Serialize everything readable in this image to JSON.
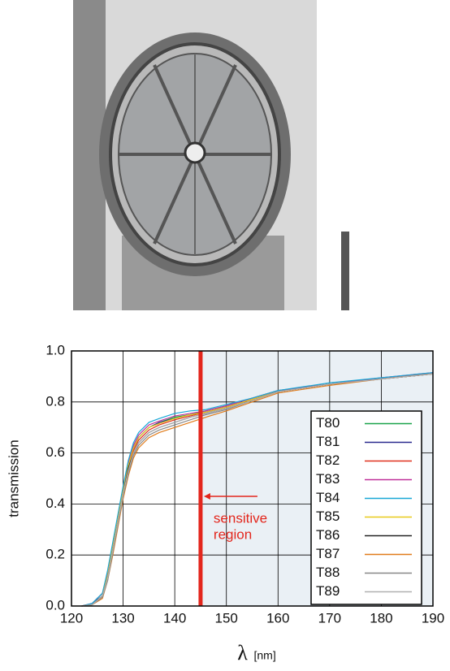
{
  "chart_data": {
    "type": "line",
    "ylabel": "transmission",
    "xlabel": "λ",
    "xlabel_unit": "[nm]",
    "annotation_lines": [
      "sensitive",
      "region"
    ],
    "sensitive_line_x": 145,
    "sensitive_color": "#e3261c",
    "region_color": "#eaf0f5",
    "grid": true,
    "legend": "lower-right",
    "xlim": [
      120,
      190
    ],
    "xticks": [
      120,
      130,
      140,
      150,
      160,
      170,
      180,
      190
    ],
    "ylim": [
      0,
      1
    ],
    "yticks": [
      {
        "value": 0,
        "label": "0.0"
      },
      0.2,
      0.4,
      0.6,
      0.8,
      {
        "value": 1,
        "label": "1.0"
      }
    ],
    "x": [
      122,
      124,
      126,
      127,
      128,
      129,
      130,
      131,
      132,
      133,
      135,
      137,
      140,
      143,
      146,
      150,
      155,
      160,
      170,
      180,
      190
    ],
    "series": [
      {
        "name": "T80",
        "color": "#1aa34a",
        "values": [
          0,
          0.01,
          0.05,
          0.13,
          0.24,
          0.35,
          0.46,
          0.55,
          0.62,
          0.66,
          0.7,
          0.72,
          0.74,
          0.75,
          0.765,
          0.785,
          0.815,
          0.845,
          0.87,
          0.89,
          0.91
        ]
      },
      {
        "name": "T81",
        "color": "#2b2b8f",
        "values": [
          0,
          0.01,
          0.04,
          0.12,
          0.23,
          0.34,
          0.45,
          0.55,
          0.62,
          0.66,
          0.7,
          0.72,
          0.735,
          0.75,
          0.76,
          0.78,
          0.81,
          0.84,
          0.87,
          0.89,
          0.91
        ]
      },
      {
        "name": "T82",
        "color": "#e0301e",
        "values": [
          0,
          0.005,
          0.04,
          0.11,
          0.22,
          0.33,
          0.44,
          0.54,
          0.61,
          0.65,
          0.69,
          0.71,
          0.73,
          0.745,
          0.76,
          0.78,
          0.81,
          0.84,
          0.87,
          0.89,
          0.915
        ]
      },
      {
        "name": "T83",
        "color": "#c0309a",
        "values": [
          0,
          0.01,
          0.05,
          0.13,
          0.24,
          0.35,
          0.46,
          0.56,
          0.63,
          0.67,
          0.71,
          0.725,
          0.745,
          0.755,
          0.765,
          0.785,
          0.815,
          0.845,
          0.87,
          0.895,
          0.915
        ]
      },
      {
        "name": "T84",
        "color": "#18a7d6",
        "values": [
          0,
          0.01,
          0.05,
          0.14,
          0.25,
          0.36,
          0.47,
          0.57,
          0.64,
          0.68,
          0.72,
          0.735,
          0.755,
          0.765,
          0.77,
          0.79,
          0.815,
          0.845,
          0.875,
          0.895,
          0.915
        ]
      },
      {
        "name": "T85",
        "color": "#e8c91a",
        "values": [
          0,
          0.005,
          0.04,
          0.12,
          0.23,
          0.34,
          0.45,
          0.55,
          0.62,
          0.66,
          0.7,
          0.715,
          0.735,
          0.75,
          0.76,
          0.78,
          0.81,
          0.84,
          0.87,
          0.89,
          0.91
        ]
      },
      {
        "name": "T86",
        "color": "#222222",
        "values": [
          0,
          0.005,
          0.04,
          0.11,
          0.22,
          0.33,
          0.44,
          0.54,
          0.6,
          0.64,
          0.68,
          0.7,
          0.72,
          0.74,
          0.755,
          0.775,
          0.805,
          0.84,
          0.87,
          0.89,
          0.91
        ]
      },
      {
        "name": "T87",
        "color": "#e07b1a",
        "values": [
          0,
          0.005,
          0.03,
          0.1,
          0.2,
          0.31,
          0.42,
          0.51,
          0.58,
          0.62,
          0.66,
          0.68,
          0.7,
          0.72,
          0.74,
          0.765,
          0.8,
          0.835,
          0.865,
          0.89,
          0.91
        ]
      },
      {
        "name": "T88",
        "color": "#888888",
        "values": [
          0,
          0.005,
          0.035,
          0.1,
          0.21,
          0.32,
          0.43,
          0.52,
          0.59,
          0.63,
          0.67,
          0.69,
          0.71,
          0.73,
          0.75,
          0.77,
          0.805,
          0.84,
          0.87,
          0.89,
          0.91
        ]
      },
      {
        "name": "T89",
        "color": "#b0b0b0",
        "values": [
          0,
          0.005,
          0.04,
          0.11,
          0.22,
          0.33,
          0.44,
          0.53,
          0.6,
          0.64,
          0.68,
          0.7,
          0.72,
          0.74,
          0.755,
          0.775,
          0.805,
          0.84,
          0.87,
          0.89,
          0.91
        ]
      }
    ]
  }
}
